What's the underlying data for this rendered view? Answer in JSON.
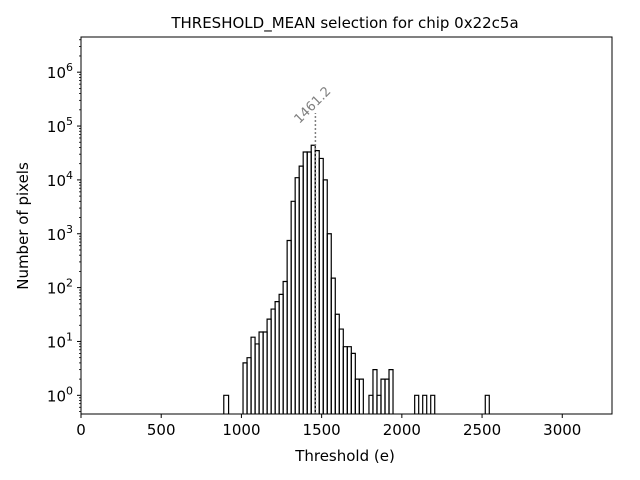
{
  "chart_data": {
    "type": "histogram",
    "title": "THRESHOLD_MEAN selection for chip 0x22c5a",
    "xlabel": "Threshold (e)",
    "ylabel": "Number of pixels",
    "y_scale": "log",
    "xlim": [
      0,
      3310
    ],
    "ylim": [
      0.45,
      4500000
    ],
    "x_ticks": [
      0,
      500,
      1000,
      1500,
      2000,
      2500,
      3000
    ],
    "y_ticks": [
      {
        "value": 1,
        "base": "10",
        "exp": "0"
      },
      {
        "value": 10,
        "base": "10",
        "exp": "1"
      },
      {
        "value": 100,
        "base": "10",
        "exp": "2"
      },
      {
        "value": 1000,
        "base": "10",
        "exp": "3"
      },
      {
        "value": 10000,
        "base": "10",
        "exp": "4"
      },
      {
        "value": 100000,
        "base": "10",
        "exp": "5"
      },
      {
        "value": 1000000,
        "base": "10",
        "exp": "6"
      }
    ],
    "bins": [
      [
        890,
        920,
        1
      ],
      [
        1010,
        1035,
        4
      ],
      [
        1035,
        1060,
        5
      ],
      [
        1060,
        1085,
        12
      ],
      [
        1085,
        1110,
        9
      ],
      [
        1110,
        1135,
        15
      ],
      [
        1135,
        1160,
        15
      ],
      [
        1160,
        1185,
        26
      ],
      [
        1185,
        1210,
        40
      ],
      [
        1210,
        1235,
        55
      ],
      [
        1235,
        1260,
        75
      ],
      [
        1260,
        1285,
        130
      ],
      [
        1285,
        1310,
        750
      ],
      [
        1310,
        1335,
        4000
      ],
      [
        1335,
        1360,
        11000
      ],
      [
        1360,
        1385,
        18000
      ],
      [
        1385,
        1410,
        33000
      ],
      [
        1410,
        1435,
        33000
      ],
      [
        1435,
        1460,
        44000
      ],
      [
        1460,
        1485,
        35000
      ],
      [
        1485,
        1510,
        25000
      ],
      [
        1510,
        1535,
        10000
      ],
      [
        1535,
        1560,
        1000
      ],
      [
        1560,
        1585,
        150
      ],
      [
        1585,
        1610,
        32
      ],
      [
        1610,
        1635,
        17
      ],
      [
        1635,
        1660,
        8
      ],
      [
        1660,
        1685,
        8
      ],
      [
        1685,
        1710,
        6
      ],
      [
        1710,
        1735,
        2
      ],
      [
        1735,
        1760,
        2
      ],
      [
        1795,
        1820,
        1
      ],
      [
        1820,
        1845,
        3
      ],
      [
        1845,
        1870,
        1
      ],
      [
        1870,
        1895,
        2
      ],
      [
        1895,
        1920,
        2
      ],
      [
        1920,
        1945,
        3
      ],
      [
        2080,
        2105,
        1
      ],
      [
        2130,
        2155,
        1
      ],
      [
        2180,
        2205,
        1
      ],
      [
        2520,
        2545,
        1
      ]
    ],
    "vline": {
      "x": 1461.2,
      "label": "1461.2",
      "style": "dotted",
      "color": "#808080"
    }
  }
}
